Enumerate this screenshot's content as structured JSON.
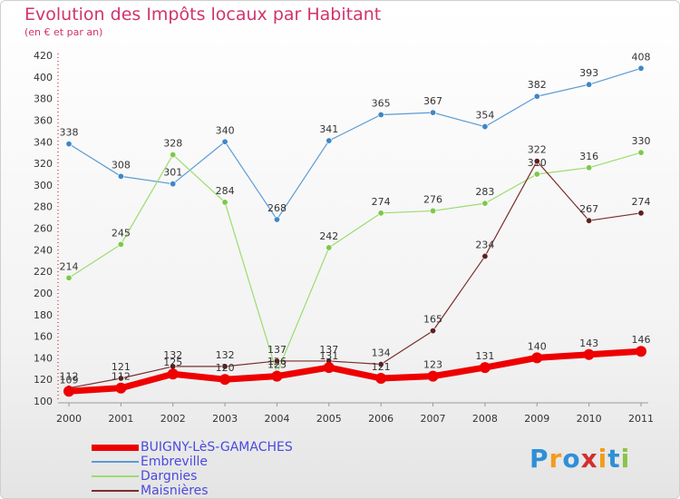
{
  "chart_data": {
    "type": "line",
    "title": "Evolution des Impôts locaux par Habitant",
    "subtitle": "(en € et par an)",
    "x": [
      "2000",
      "2001",
      "2002",
      "2003",
      "2004",
      "2005",
      "2006",
      "2007",
      "2008",
      "2009",
      "2010",
      "2011"
    ],
    "ylim": [
      100,
      420
    ],
    "yticks": [
      "100",
      "120",
      "140",
      "160",
      "180",
      "200",
      "220",
      "240",
      "260",
      "280",
      "300",
      "320",
      "340",
      "360",
      "380",
      "400",
      "420"
    ],
    "grid": false,
    "legend_position": "bottom-left",
    "series": [
      {
        "name": "BUIGNY-LèS-GAMACHES",
        "color": "#ee0000",
        "values": [
          109,
          112,
          125,
          120,
          123,
          131,
          121,
          123,
          131,
          140,
          143,
          146
        ],
        "labels": [
          "109",
          "112",
          "125",
          "120",
          "123",
          "131",
          "121",
          "123",
          "131",
          "140",
          "143",
          "146"
        ]
      },
      {
        "name": "Embreville",
        "color": "#5b9bd5",
        "values": [
          338,
          308,
          301,
          340,
          268,
          341,
          365,
          367,
          354,
          382,
          393,
          408
        ],
        "labels": [
          "338",
          "308",
          "301",
          "340",
          "268",
          "341",
          "365",
          "367",
          "354",
          "382",
          "393",
          "408"
        ]
      },
      {
        "name": "Dargnies",
        "color": "#9bdc6e",
        "values": [
          214,
          245,
          328,
          284,
          126,
          242,
          274,
          276,
          283,
          310,
          316,
          330
        ],
        "labels": [
          "214",
          "245",
          "328",
          "284",
          "126",
          "242",
          "274",
          "276",
          "283",
          "310",
          "316",
          "330"
        ]
      },
      {
        "name": "Maisnières",
        "color": "#7a2e2e",
        "values": [
          112,
          121,
          132,
          132,
          137,
          137,
          134,
          165,
          234,
          322,
          267,
          274
        ],
        "labels": [
          "112",
          "121",
          "132",
          "132",
          "137",
          "137",
          "134",
          "165",
          "234",
          "322",
          "267",
          "274"
        ]
      }
    ]
  },
  "logo": {
    "text": "Proxiti",
    "letter_colors": [
      "#2f8fd8",
      "#f39c1c",
      "#2f8fd8",
      "#d32f2f",
      "#f39c1c",
      "#2f8fd8",
      "#8bc34a"
    ]
  }
}
